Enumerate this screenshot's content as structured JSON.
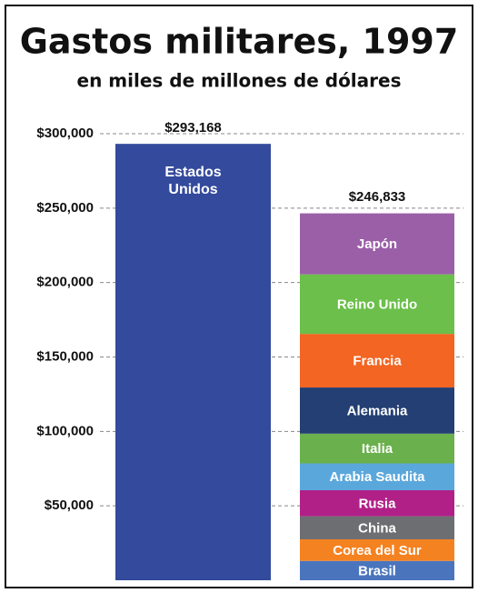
{
  "chart_data": {
    "type": "stacked_bar",
    "title": "Gastos militares, 1997",
    "subtitle": "en miles de millones de dólares",
    "ylim": [
      0,
      300000
    ],
    "yticks": [
      {
        "value": 50000,
        "label": "$50,000"
      },
      {
        "value": 100000,
        "label": "$100,000"
      },
      {
        "value": 150000,
        "label": "$150,000"
      },
      {
        "value": 200000,
        "label": "$200,000"
      },
      {
        "value": 250000,
        "label": "$250,000"
      },
      {
        "value": 300000,
        "label": "$300,000"
      }
    ],
    "grid": true,
    "bars": [
      {
        "total": 293168,
        "total_label": "$293,168",
        "segments": [
          {
            "name": "Estados Unidos",
            "value": 293168,
            "color": "#344a9c"
          }
        ]
      },
      {
        "total": 246833,
        "total_label": "$246,833",
        "segments": [
          {
            "name": "Brasil",
            "value": 13000,
            "color": "#4a75bd"
          },
          {
            "name": "Corea del Sur",
            "value": 14500,
            "color": "#f58220"
          },
          {
            "name": "China",
            "value": 15500,
            "color": "#6d6e71"
          },
          {
            "name": "Rusia",
            "value": 17500,
            "color": "#b02087"
          },
          {
            "name": "Arabia Saudita",
            "value": 18000,
            "color": "#5aa7dc"
          },
          {
            "name": "Italia",
            "value": 20000,
            "color": "#6ab04c"
          },
          {
            "name": "Alemania",
            "value": 31000,
            "color": "#233f73"
          },
          {
            "name": "Francia",
            "value": 36000,
            "color": "#f26522"
          },
          {
            "name": "Reino Unido",
            "value": 40000,
            "color": "#6bbf4a"
          },
          {
            "name": "Japón",
            "value": 41000,
            "color": "#9b5fa8"
          }
        ]
      }
    ]
  }
}
